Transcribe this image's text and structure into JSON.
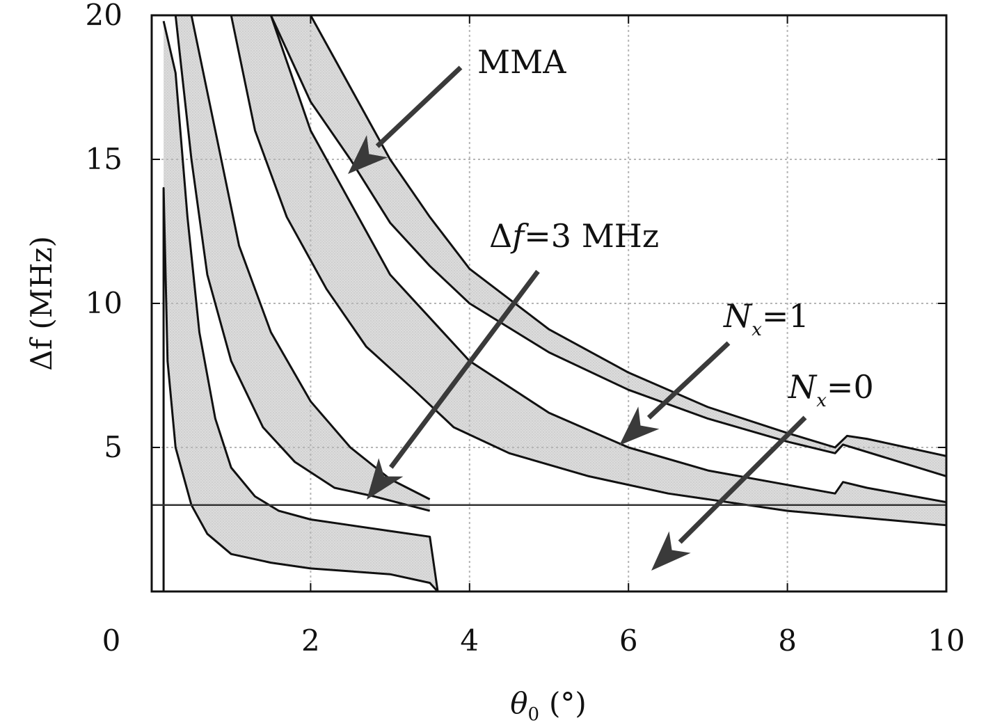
{
  "chart_data": {
    "type": "area",
    "title": "",
    "xlabel": "θ",
    "xlabel_sub": "0",
    "xlabel_unit": "(°)",
    "ylabel": "Δf (MHz)",
    "xlim": [
      0,
      10
    ],
    "ylim": [
      0,
      20
    ],
    "x_ticks": [
      0,
      2,
      4,
      6,
      8,
      10
    ],
    "y_ticks": [
      5,
      10,
      15,
      20
    ],
    "x_tick_labels": [
      "0",
      "2",
      "4",
      "6",
      "8",
      "10"
    ],
    "y_tick_labels": [
      "5",
      "10",
      "15",
      "20"
    ],
    "grid": true,
    "reference_line": {
      "y": 3
    },
    "bands": [
      {
        "upper": [
          [
            0.15,
            19.8
          ],
          [
            0.3,
            18
          ],
          [
            0.45,
            13
          ],
          [
            0.6,
            9
          ],
          [
            0.8,
            6
          ],
          [
            1.0,
            4.3
          ],
          [
            1.3,
            3.3
          ],
          [
            1.6,
            2.8
          ],
          [
            2.0,
            2.5
          ],
          [
            2.5,
            2.3
          ],
          [
            3.0,
            2.1
          ],
          [
            3.5,
            1.9
          ],
          [
            3.6,
            0
          ]
        ],
        "lower": [
          [
            0.15,
            0
          ],
          [
            0.15,
            14
          ],
          [
            0.2,
            8
          ],
          [
            0.3,
            5
          ],
          [
            0.5,
            3
          ],
          [
            0.7,
            2
          ],
          [
            1.0,
            1.3
          ],
          [
            1.5,
            1.0
          ],
          [
            2.0,
            0.8
          ],
          [
            2.5,
            0.7
          ],
          [
            3.0,
            0.6
          ],
          [
            3.5,
            0.3
          ],
          [
            3.6,
            0
          ]
        ]
      },
      {
        "upper": [
          [
            0.5,
            20
          ],
          [
            0.8,
            16
          ],
          [
            1.1,
            12
          ],
          [
            1.5,
            9
          ],
          [
            2.0,
            6.6
          ],
          [
            2.5,
            5
          ],
          [
            3.0,
            3.9
          ],
          [
            3.5,
            3.2
          ]
        ],
        "lower": [
          [
            0.3,
            20
          ],
          [
            0.5,
            15
          ],
          [
            0.7,
            11
          ],
          [
            1.0,
            8
          ],
          [
            1.4,
            5.7
          ],
          [
            1.8,
            4.5
          ],
          [
            2.3,
            3.6
          ],
          [
            2.8,
            3.3
          ],
          [
            3.5,
            2.8
          ]
        ]
      },
      {
        "upper": [
          [
            1.5,
            20
          ],
          [
            2.0,
            16
          ],
          [
            2.5,
            13.5
          ],
          [
            3.0,
            11
          ],
          [
            3.5,
            9.5
          ],
          [
            4.0,
            8
          ],
          [
            5.0,
            6.2
          ],
          [
            6.0,
            5
          ],
          [
            7.0,
            4.2
          ],
          [
            8.0,
            3.7
          ],
          [
            8.6,
            3.4
          ],
          [
            8.7,
            3.8
          ],
          [
            9.0,
            3.6
          ],
          [
            10,
            3.1
          ]
        ],
        "lower": [
          [
            1.0,
            20
          ],
          [
            1.3,
            16
          ],
          [
            1.7,
            13
          ],
          [
            2.2,
            10.5
          ],
          [
            2.7,
            8.5
          ],
          [
            3.3,
            7
          ],
          [
            3.8,
            5.7
          ],
          [
            4.5,
            4.8
          ],
          [
            5.5,
            4
          ],
          [
            6.5,
            3.4
          ],
          [
            7.5,
            3.0
          ],
          [
            8.0,
            2.8
          ],
          [
            10,
            2.3
          ]
        ]
      },
      {
        "upper": [
          [
            2.0,
            20
          ],
          [
            2.5,
            17.5
          ],
          [
            3.0,
            15
          ],
          [
            3.5,
            13
          ],
          [
            4.0,
            11.2
          ],
          [
            5.0,
            9.1
          ],
          [
            6.0,
            7.6
          ],
          [
            7.0,
            6.4
          ],
          [
            8.0,
            5.5
          ],
          [
            8.6,
            5.0
          ],
          [
            8.75,
            5.4
          ],
          [
            9.0,
            5.3
          ],
          [
            10,
            4.7
          ]
        ],
        "lower": [
          [
            1.5,
            20
          ],
          [
            2.0,
            17
          ],
          [
            2.5,
            15
          ],
          [
            3.0,
            12.8
          ],
          [
            3.5,
            11.3
          ],
          [
            4.0,
            10
          ],
          [
            5.0,
            8.3
          ],
          [
            6.0,
            7.0
          ],
          [
            7.0,
            6.0
          ],
          [
            8.0,
            5.2
          ],
          [
            8.6,
            4.8
          ],
          [
            8.7,
            5.1
          ],
          [
            10,
            4.0
          ]
        ]
      }
    ],
    "annotations": [
      {
        "label": "MMA",
        "text": "MMA"
      },
      {
        "label": "Δf=3 MHz",
        "prefix": "Δ",
        "italic": "f",
        "suffix": "=3 MHz"
      },
      {
        "label": "N_x=1",
        "italic": "N",
        "sub": "x",
        "suffix": "=1"
      },
      {
        "label": "N_x=0",
        "italic": "N",
        "sub": "x",
        "suffix": "=0"
      }
    ]
  },
  "colors": {
    "band_fill": "#d6d6d6",
    "curve": "#111111",
    "grid": "#b5b5b5",
    "arrow": "#3a3a3a",
    "background": "#ffffff"
  }
}
